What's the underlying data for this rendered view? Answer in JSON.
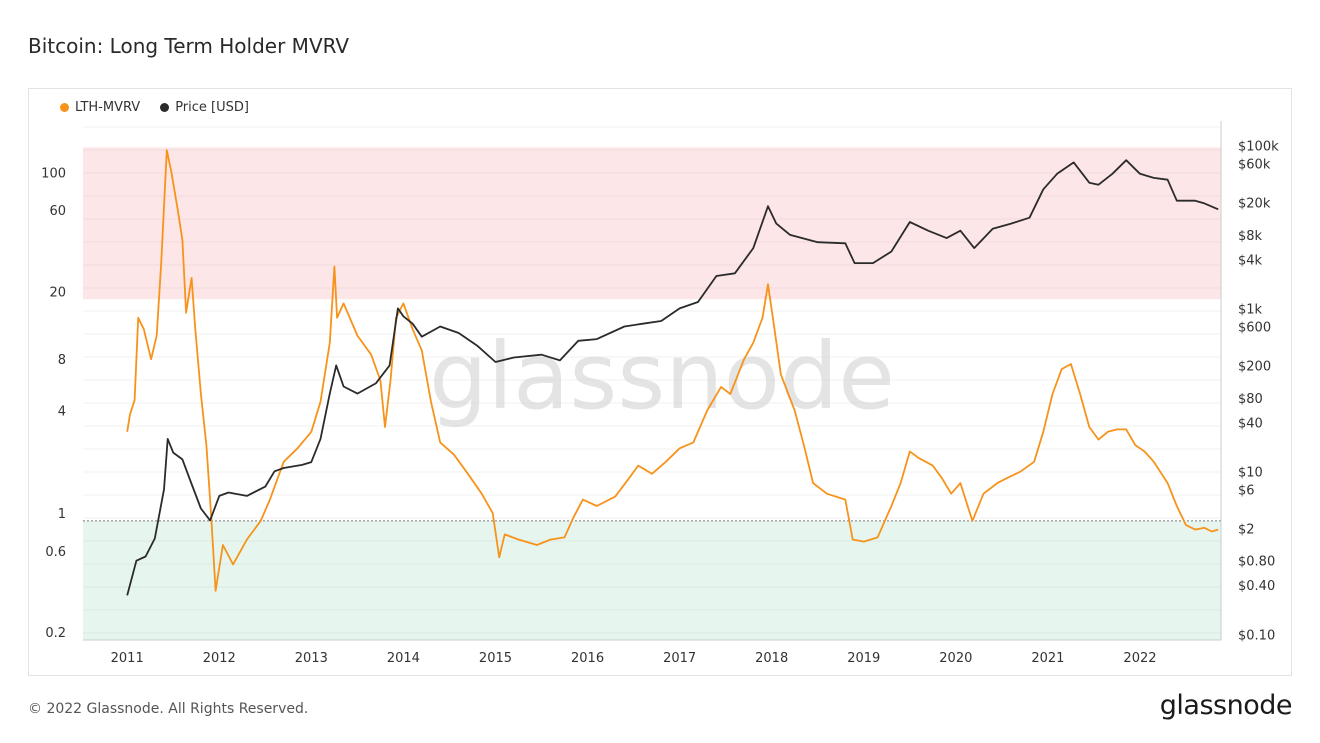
{
  "chart_data": {
    "type": "line",
    "title": "Bitcoin: Long Term Holder MVRV",
    "watermark": "glassnode",
    "x_ticks": [
      "2011",
      "2012",
      "2013",
      "2014",
      "2015",
      "2016",
      "2017",
      "2018",
      "2019",
      "2020",
      "2021",
      "2022"
    ],
    "left_axis": {
      "scale": "log",
      "range": [
        0.18,
        200
      ],
      "ticks": [
        "100",
        "60",
        "20",
        "8",
        "4",
        "1",
        "0.6",
        "0.2"
      ]
    },
    "right_axis": {
      "scale": "log",
      "range": [
        0.085,
        200000
      ],
      "ticks": [
        "$100k",
        "$60k",
        "$20k",
        "$8k",
        "$4k",
        "$1k",
        "$600",
        "$200",
        "$80",
        "$40",
        "$10",
        "$6",
        "$2",
        "$0.80",
        "$0.40",
        "$0.10"
      ]
    },
    "bands": [
      {
        "name": "overvalued-zone",
        "from": 18,
        "to": 140,
        "color": "#fde6e8"
      },
      {
        "name": "undervalued-zone",
        "from": 0.18,
        "to": 0.9,
        "color": "#e6f6ef"
      }
    ],
    "reference_line": {
      "value": 0.9,
      "style": "dotted"
    },
    "series": [
      {
        "name": "LTH-MVRV",
        "axis": "left",
        "color": "#f7931a",
        "points": [
          [
            2011.0,
            3.0
          ],
          [
            2011.03,
            3.8
          ],
          [
            2011.08,
            4.6
          ],
          [
            2011.12,
            14.0
          ],
          [
            2011.18,
            12.0
          ],
          [
            2011.26,
            8.0
          ],
          [
            2011.32,
            11.0
          ],
          [
            2011.37,
            30.0
          ],
          [
            2011.43,
            135.0
          ],
          [
            2011.48,
            100.0
          ],
          [
            2011.55,
            60.0
          ],
          [
            2011.6,
            40.0
          ],
          [
            2011.64,
            15.0
          ],
          [
            2011.7,
            24.0
          ],
          [
            2011.74,
            12.0
          ],
          [
            2011.8,
            5.0
          ],
          [
            2011.86,
            2.5
          ],
          [
            2011.91,
            1.0
          ],
          [
            2011.96,
            0.35
          ],
          [
            2012.04,
            0.65
          ],
          [
            2012.15,
            0.5
          ],
          [
            2012.3,
            0.7
          ],
          [
            2012.45,
            0.9
          ],
          [
            2012.55,
            1.2
          ],
          [
            2012.7,
            2.0
          ],
          [
            2012.85,
            2.4
          ],
          [
            2013.0,
            3.0
          ],
          [
            2013.1,
            4.5
          ],
          [
            2013.2,
            10.0
          ],
          [
            2013.25,
            28.0
          ],
          [
            2013.28,
            14.0
          ],
          [
            2013.35,
            17.0
          ],
          [
            2013.5,
            11.0
          ],
          [
            2013.65,
            8.5
          ],
          [
            2013.75,
            6.0
          ],
          [
            2013.8,
            3.2
          ],
          [
            2013.86,
            6.0
          ],
          [
            2013.92,
            14.0
          ],
          [
            2014.0,
            17.0
          ],
          [
            2014.1,
            12.0
          ],
          [
            2014.2,
            9.0
          ],
          [
            2014.3,
            4.5
          ],
          [
            2014.4,
            2.6
          ],
          [
            2014.55,
            2.2
          ],
          [
            2014.7,
            1.7
          ],
          [
            2014.85,
            1.3
          ],
          [
            2014.97,
            1.0
          ],
          [
            2015.04,
            0.55
          ],
          [
            2015.1,
            0.75
          ],
          [
            2015.25,
            0.7
          ],
          [
            2015.45,
            0.65
          ],
          [
            2015.6,
            0.7
          ],
          [
            2015.75,
            0.72
          ],
          [
            2015.85,
            0.95
          ],
          [
            2015.95,
            1.2
          ],
          [
            2016.1,
            1.1
          ],
          [
            2016.3,
            1.25
          ],
          [
            2016.45,
            1.6
          ],
          [
            2016.55,
            1.9
          ],
          [
            2016.7,
            1.7
          ],
          [
            2016.85,
            2.0
          ],
          [
            2017.0,
            2.4
          ],
          [
            2017.15,
            2.6
          ],
          [
            2017.3,
            4.0
          ],
          [
            2017.45,
            5.5
          ],
          [
            2017.55,
            5.0
          ],
          [
            2017.7,
            8.0
          ],
          [
            2017.8,
            10.0
          ],
          [
            2017.9,
            14.0
          ],
          [
            2017.96,
            22.0
          ],
          [
            2018.03,
            12.0
          ],
          [
            2018.1,
            6.5
          ],
          [
            2018.25,
            4.0
          ],
          [
            2018.35,
            2.5
          ],
          [
            2018.45,
            1.5
          ],
          [
            2018.6,
            1.3
          ],
          [
            2018.8,
            1.2
          ],
          [
            2018.88,
            0.7
          ],
          [
            2019.0,
            0.68
          ],
          [
            2019.15,
            0.72
          ],
          [
            2019.3,
            1.1
          ],
          [
            2019.4,
            1.5
          ],
          [
            2019.5,
            2.3
          ],
          [
            2019.6,
            2.1
          ],
          [
            2019.75,
            1.9
          ],
          [
            2019.85,
            1.6
          ],
          [
            2019.95,
            1.3
          ],
          [
            2020.05,
            1.5
          ],
          [
            2020.18,
            0.9
          ],
          [
            2020.3,
            1.3
          ],
          [
            2020.45,
            1.5
          ],
          [
            2020.55,
            1.6
          ],
          [
            2020.7,
            1.75
          ],
          [
            2020.85,
            2.0
          ],
          [
            2020.95,
            3.0
          ],
          [
            2021.05,
            5.0
          ],
          [
            2021.15,
            7.0
          ],
          [
            2021.25,
            7.5
          ],
          [
            2021.35,
            5.0
          ],
          [
            2021.45,
            3.2
          ],
          [
            2021.55,
            2.7
          ],
          [
            2021.65,
            3.0
          ],
          [
            2021.75,
            3.1
          ],
          [
            2021.85,
            3.1
          ],
          [
            2021.95,
            2.5
          ],
          [
            2022.05,
            2.3
          ],
          [
            2022.15,
            2.0
          ],
          [
            2022.3,
            1.5
          ],
          [
            2022.4,
            1.1
          ],
          [
            2022.5,
            0.85
          ],
          [
            2022.6,
            0.8
          ],
          [
            2022.7,
            0.82
          ],
          [
            2022.78,
            0.78
          ],
          [
            2022.85,
            0.8
          ]
        ]
      },
      {
        "name": "Price [USD]",
        "axis": "right",
        "color": "#2b2b2b",
        "points": [
          [
            2011.0,
            0.3
          ],
          [
            2011.1,
            0.8
          ],
          [
            2011.2,
            0.9
          ],
          [
            2011.3,
            1.5
          ],
          [
            2011.4,
            6.0
          ],
          [
            2011.44,
            25.0
          ],
          [
            2011.5,
            17.0
          ],
          [
            2011.6,
            14.0
          ],
          [
            2011.7,
            7.0
          ],
          [
            2011.8,
            3.5
          ],
          [
            2011.9,
            2.5
          ],
          [
            2012.0,
            5.0
          ],
          [
            2012.1,
            5.5
          ],
          [
            2012.3,
            5.0
          ],
          [
            2012.5,
            6.5
          ],
          [
            2012.6,
            10.0
          ],
          [
            2012.7,
            11.0
          ],
          [
            2012.9,
            12.0
          ],
          [
            2013.0,
            13.0
          ],
          [
            2013.1,
            25.0
          ],
          [
            2013.2,
            90.0
          ],
          [
            2013.27,
            200.0
          ],
          [
            2013.35,
            110.0
          ],
          [
            2013.5,
            90.0
          ],
          [
            2013.7,
            120.0
          ],
          [
            2013.85,
            200.0
          ],
          [
            2013.94,
            1000.0
          ],
          [
            2014.0,
            800.0
          ],
          [
            2014.1,
            650.0
          ],
          [
            2014.2,
            450.0
          ],
          [
            2014.4,
            600.0
          ],
          [
            2014.6,
            500.0
          ],
          [
            2014.8,
            350.0
          ],
          [
            2015.0,
            220.0
          ],
          [
            2015.2,
            250.0
          ],
          [
            2015.5,
            270.0
          ],
          [
            2015.7,
            230.0
          ],
          [
            2015.9,
            400.0
          ],
          [
            2016.1,
            420.0
          ],
          [
            2016.4,
            600.0
          ],
          [
            2016.6,
            650.0
          ],
          [
            2016.8,
            700.0
          ],
          [
            2017.0,
            1000.0
          ],
          [
            2017.2,
            1200.0
          ],
          [
            2017.4,
            2500.0
          ],
          [
            2017.6,
            2700.0
          ],
          [
            2017.8,
            5500.0
          ],
          [
            2017.96,
            18000.0
          ],
          [
            2018.05,
            11000.0
          ],
          [
            2018.2,
            8000.0
          ],
          [
            2018.5,
            6500.0
          ],
          [
            2018.8,
            6300.0
          ],
          [
            2018.9,
            3600.0
          ],
          [
            2019.1,
            3600.0
          ],
          [
            2019.3,
            5000.0
          ],
          [
            2019.5,
            11500.0
          ],
          [
            2019.7,
            9000.0
          ],
          [
            2019.9,
            7300.0
          ],
          [
            2020.05,
            9000.0
          ],
          [
            2020.2,
            5500.0
          ],
          [
            2020.4,
            9500.0
          ],
          [
            2020.6,
            11000.0
          ],
          [
            2020.8,
            13000.0
          ],
          [
            2020.95,
            29000.0
          ],
          [
            2021.1,
            45000.0
          ],
          [
            2021.28,
            62000.0
          ],
          [
            2021.45,
            35000.0
          ],
          [
            2021.55,
            33000.0
          ],
          [
            2021.7,
            45000.0
          ],
          [
            2021.85,
            66000.0
          ],
          [
            2022.0,
            45000.0
          ],
          [
            2022.15,
            40000.0
          ],
          [
            2022.3,
            38000.0
          ],
          [
            2022.4,
            21000.0
          ],
          [
            2022.6,
            21000.0
          ],
          [
            2022.7,
            19500.0
          ],
          [
            2022.85,
            16500.0
          ]
        ]
      }
    ],
    "legend": {
      "position": "top-left"
    }
  },
  "footer": {
    "copyright": "© 2022 Glassnode. All Rights Reserved.",
    "brand": "glassnode"
  }
}
